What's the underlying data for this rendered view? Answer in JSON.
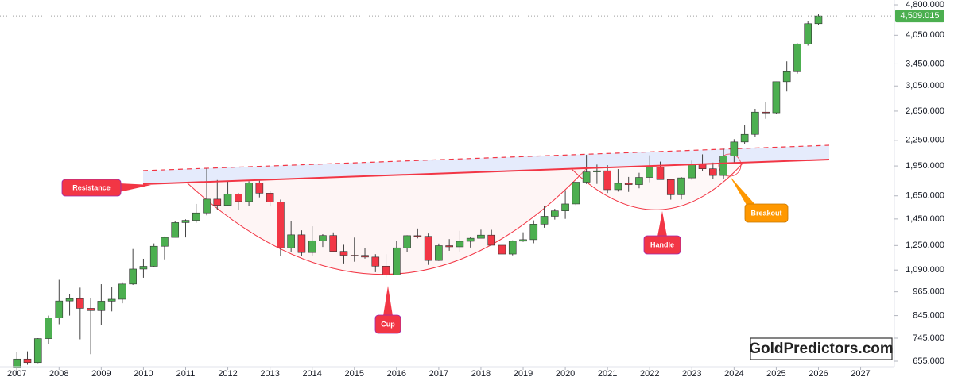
{
  "chart_data": {
    "type": "candlestick",
    "x": [
      2007,
      2007.25,
      2007.5,
      2007.75,
      2008,
      2008.25,
      2008.5,
      2008.75,
      2009,
      2009.25,
      2009.5,
      2009.75,
      2010,
      2010.25,
      2010.5,
      2010.75,
      2011,
      2011.25,
      2011.5,
      2011.75,
      2012,
      2012.25,
      2012.5,
      2012.75,
      2013,
      2013.25,
      2013.5,
      2013.75,
      2014,
      2014.25,
      2014.5,
      2014.75,
      2015,
      2015.25,
      2015.5,
      2015.75,
      2016,
      2016.25,
      2016.5,
      2016.75,
      2017,
      2017.25,
      2017.5,
      2017.75,
      2018,
      2018.25,
      2018.5,
      2018.75,
      2019,
      2019.25,
      2019.5,
      2019.75,
      2020,
      2020.25,
      2020.5,
      2020.75,
      2021,
      2021.25,
      2021.5,
      2021.75,
      2022,
      2022.25,
      2022.5,
      2022.75,
      2023,
      2023.25,
      2023.5,
      2023.75,
      2024,
      2024.25,
      2024.5,
      2024.75,
      2025,
      2025.25,
      2025.5,
      2025.75,
      2026
    ],
    "open": [
      632,
      663,
      650,
      743,
      834,
      917,
      929,
      880,
      869,
      916,
      926,
      1008,
      1096,
      1113,
      1245,
      1308,
      1421,
      1439,
      1500,
      1620,
      1565,
      1668,
      1598,
      1772,
      1675,
      1595,
      1234,
      1327,
      1202,
      1284,
      1322,
      1210,
      1184,
      1183,
      1172,
      1114,
      1061,
      1234,
      1321,
      1316,
      1150,
      1249,
      1241,
      1280,
      1302,
      1325,
      1252,
      1192,
      1281,
      1292,
      1409,
      1472,
      1517,
      1577,
      1781,
      1886,
      1898,
      1708,
      1770,
      1757,
      1829,
      1937,
      1807,
      1660,
      1824,
      1969,
      1919,
      1849,
      2063,
      2230,
      2327,
      2635,
      2625,
      3124,
      3303,
      3858,
      4320
    ],
    "high": [
      690,
      692,
      745,
      845,
      1032,
      951,
      988,
      934,
      1007,
      990,
      1018,
      1226,
      1161,
      1265,
      1315,
      1431,
      1447,
      1577,
      1921,
      1803,
      1791,
      1678,
      1790,
      1796,
      1696,
      1616,
      1434,
      1361,
      1392,
      1332,
      1345,
      1255,
      1307,
      1232,
      1191,
      1191,
      1282,
      1324,
      1375,
      1337,
      1264,
      1296,
      1357,
      1310,
      1366,
      1365,
      1265,
      1287,
      1346,
      1439,
      1557,
      1535,
      1703,
      1788,
      2075,
      1965,
      1959,
      1916,
      1834,
      1877,
      2070,
      1998,
      1814,
      1833,
      2009,
      2081,
      1987,
      2146,
      2265,
      2450,
      2685,
      2790,
      3128,
      3500,
      3872,
      4381,
      4550
    ],
    "low": [
      608,
      642,
      648,
      720,
      805,
      845,
      740,
      681,
      802,
      865,
      905,
      1003,
      1044,
      1106,
      1157,
      1308,
      1308,
      1420,
      1480,
      1522,
      1562,
      1527,
      1556,
      1636,
      1555,
      1180,
      1207,
      1180,
      1182,
      1240,
      1206,
      1131,
      1142,
      1162,
      1077,
      1046,
      1061,
      1208,
      1301,
      1122,
      1147,
      1214,
      1204,
      1236,
      1302,
      1251,
      1160,
      1183,
      1276,
      1266,
      1381,
      1445,
      1451,
      1567,
      1763,
      1764,
      1676,
      1690,
      1687,
      1721,
      1780,
      1805,
      1615,
      1617,
      1805,
      1893,
      1810,
      1810,
      1984,
      2200,
      2293,
      2537,
      2614,
      2957,
      3268,
      3820,
      4280
    ],
    "close": [
      663,
      650,
      743,
      834,
      917,
      929,
      880,
      869,
      916,
      926,
      1008,
      1096,
      1113,
      1245,
      1308,
      1421,
      1439,
      1500,
      1620,
      1565,
      1668,
      1598,
      1772,
      1675,
      1595,
      1234,
      1327,
      1202,
      1284,
      1322,
      1210,
      1184,
      1183,
      1172,
      1114,
      1061,
      1234,
      1321,
      1316,
      1150,
      1249,
      1241,
      1280,
      1302,
      1325,
      1252,
      1192,
      1281,
      1292,
      1409,
      1472,
      1517,
      1577,
      1781,
      1886,
      1898,
      1708,
      1770,
      1757,
      1829,
      1937,
      1807,
      1660,
      1824,
      1969,
      1919,
      1849,
      2063,
      2230,
      2327,
      2635,
      2625,
      3124,
      3303,
      3858,
      4320,
      4509.015
    ],
    "last_value_label": "4,509.015",
    "up_color": "#4caf50",
    "down_color": "#f23645",
    "log_scale": true,
    "xlim": [
      2006.6,
      2027.8
    ],
    "xticks": [
      2007,
      2008,
      2009,
      2010,
      2011,
      2012,
      2013,
      2014,
      2015,
      2016,
      2017,
      2018,
      2019,
      2020,
      2021,
      2022,
      2023,
      2024,
      2025,
      2026,
      2027
    ],
    "ylim": [
      635,
      4930
    ],
    "yticks": [
      {
        "value": 655,
        "label": "655.000"
      },
      {
        "value": 745,
        "label": "745.000"
      },
      {
        "value": 845,
        "label": "845.000"
      },
      {
        "value": 965,
        "label": "965.000"
      },
      {
        "value": 1090,
        "label": "1,090.000"
      },
      {
        "value": 1250,
        "label": "1,250.000"
      },
      {
        "value": 1450,
        "label": "1,450.000"
      },
      {
        "value": 1650,
        "label": "1,650.000"
      },
      {
        "value": 1950,
        "label": "1,950.000"
      },
      {
        "value": 2250,
        "label": "2,250.000"
      },
      {
        "value": 2650,
        "label": "2,650.000"
      },
      {
        "value": 3050,
        "label": "3,050.000"
      },
      {
        "value": 3450,
        "label": "3,450.000"
      },
      {
        "value": 4050,
        "label": "4,050.000"
      },
      {
        "value": 4800,
        "label": "4,800.000"
      }
    ],
    "annotations": {
      "resistance": "Resistance",
      "cup": "Cup",
      "handle": "Handle",
      "breakout": "Breakout"
    },
    "watermark": "GoldPredictors.com"
  }
}
